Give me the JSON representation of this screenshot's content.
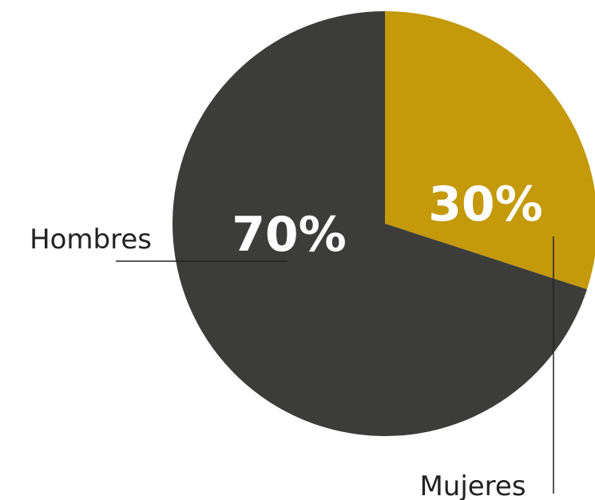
{
  "chart_data": {
    "type": "pie",
    "slices": [
      {
        "label": "Mujeres",
        "value": 30,
        "display": "30%",
        "color": "#c4990a"
      },
      {
        "label": "Hombres",
        "value": 70,
        "display": "70%",
        "color": "#3c3c3b"
      }
    ],
    "start": "12 o'clock",
    "direction": "clockwise",
    "legend": "none"
  }
}
